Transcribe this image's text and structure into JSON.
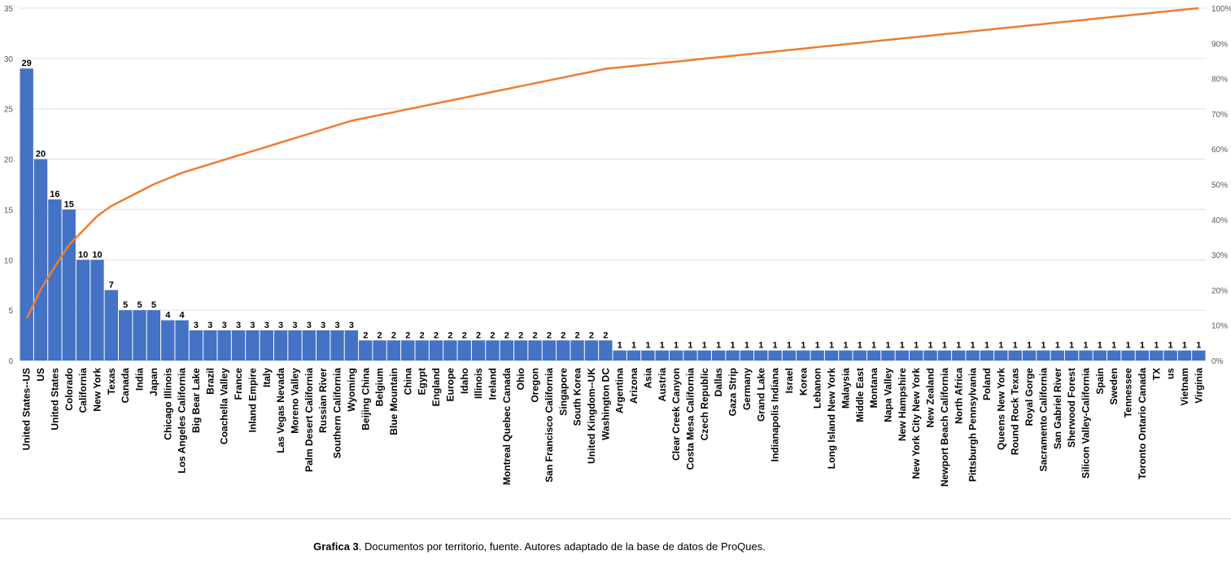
{
  "chart_data": {
    "type": "bar",
    "secondary_type": "line",
    "categories": [
      "United States--US",
      "US",
      "United States",
      "Colorado",
      "California",
      "New York",
      "Texas",
      "Canada",
      "India",
      "Japan",
      "Chicago Illinois",
      "Los Angeles California",
      "Big Bear Lake",
      "Brazil",
      "Coachella Valley",
      "France",
      "Inland Empire",
      "Italy",
      "Las Vegas Nevada",
      "Moreno Valley",
      "Palm Desert California",
      "Russian River",
      "Southern California",
      "Wyoming",
      "Beijing China",
      "Belgium",
      "Blue Mountain",
      "China",
      "Egypt",
      "England",
      "Europe",
      "Idaho",
      "Illinois",
      "Ireland",
      "Montreal Quebec Canada",
      "Ohio",
      "Oregon",
      "San Francisco California",
      "Singapore",
      "South Korea",
      "United Kingdom--UK",
      "Washington DC",
      "Argentina",
      "Arizona",
      "Asia",
      "Austria",
      "Clear Creek Canyon",
      "Costa Mesa California",
      "Czech Republic",
      "Dallas",
      "Gaza Strip",
      "Germany",
      "Grand Lake",
      "Indianapolis Indiana",
      "Israel",
      "Korea",
      "Lebanon",
      "Long Island New York",
      "Malaysia",
      "Middle East",
      "Montana",
      "Napa Valley",
      "New Hampshire",
      "New York City New York",
      "New Zealand",
      "Newport Beach California",
      "North Africa",
      "Pittsburgh Pennsylvania",
      "Poland",
      "Queens New York",
      "Round Rock Texas",
      "Royal Gorge",
      "Sacramento California",
      "San Gabriel River",
      "Sherwood Forest",
      "Silicon Valley-California",
      "Spain",
      "Sweden",
      "Tennessee",
      "Toronto Ontario Canada",
      "TX",
      "us",
      "Vietnam",
      "Virginia"
    ],
    "values": [
      29,
      20,
      16,
      15,
      10,
      10,
      7,
      5,
      5,
      5,
      4,
      4,
      3,
      3,
      3,
      3,
      3,
      3,
      3,
      3,
      3,
      3,
      3,
      3,
      2,
      2,
      2,
      2,
      2,
      2,
      2,
      2,
      2,
      2,
      2,
      2,
      2,
      2,
      2,
      2,
      2,
      2,
      1,
      1,
      1,
      1,
      1,
      1,
      1,
      1,
      1,
      1,
      1,
      1,
      1,
      1,
      1,
      1,
      1,
      1,
      1,
      1,
      1,
      1,
      1,
      1,
      1,
      1,
      1,
      1,
      1,
      1,
      1,
      1,
      1,
      1,
      1,
      1,
      1,
      1,
      1,
      1,
      1,
      1
    ],
    "series": [
      {
        "type": "bar",
        "values_from": "values"
      },
      {
        "type": "line",
        "axis": "right",
        "cumulative_percent": true
      }
    ],
    "ylim": [
      0,
      35
    ],
    "yticks": [
      0,
      5,
      10,
      15,
      20,
      25,
      30,
      35
    ],
    "y2lim": [
      0,
      100
    ],
    "y2ticks": [
      "0%",
      "10%",
      "20%",
      "30%",
      "40%",
      "50%",
      "60%",
      "70%",
      "80%",
      "90%",
      "100%"
    ],
    "colors": {
      "bar": "#4472c4",
      "line": "#ed7d31",
      "grid": "#e0e0e0",
      "text": "#595959"
    },
    "grid": true,
    "data_labels": true
  },
  "caption": {
    "bold": "Grafica 3",
    "text": ". Documentos por territorio, fuente. Autores  adaptado de la base de datos de ProQues."
  }
}
